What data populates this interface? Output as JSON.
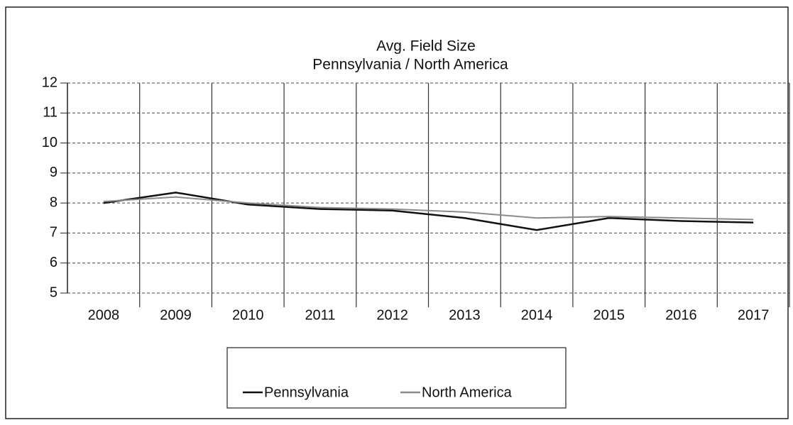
{
  "chart_data": {
    "type": "line",
    "title": "Avg. Field Size",
    "subtitle": "Pennsylvania / North America",
    "categories": [
      "2008",
      "2009",
      "2010",
      "2011",
      "2012",
      "2013",
      "2014",
      "2015",
      "2016",
      "2017"
    ],
    "series": [
      {
        "name": "Pennsylvania",
        "color": "#111111",
        "values": [
          8.0,
          8.35,
          7.95,
          7.8,
          7.75,
          7.5,
          7.1,
          7.5,
          7.4,
          7.35
        ]
      },
      {
        "name": "North America",
        "color": "#8a8a8a",
        "values": [
          8.05,
          8.2,
          8.0,
          7.85,
          7.8,
          7.7,
          7.5,
          7.55,
          7.5,
          7.45
        ]
      }
    ],
    "ylim": [
      5,
      12
    ],
    "yticks": [
      5,
      6,
      7,
      8,
      9,
      10,
      11,
      12
    ],
    "grid": true,
    "legend": "bottom"
  }
}
